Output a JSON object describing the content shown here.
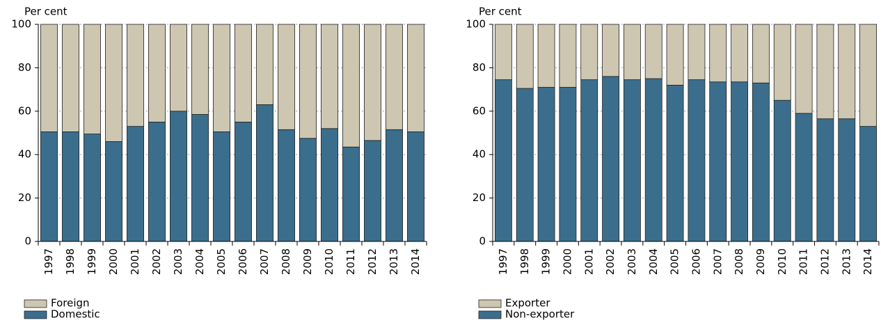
{
  "chart_data": [
    {
      "type": "bar",
      "stacked": true,
      "y_label": "Per cent",
      "categories": [
        "1997",
        "1998",
        "1999",
        "2000",
        "2001",
        "2002",
        "2003",
        "2004",
        "2005",
        "2006",
        "2007",
        "2008",
        "2009",
        "2010",
        "2011",
        "2012",
        "2013",
        "2014"
      ],
      "series": [
        {
          "name": "Domestic",
          "color": "#3b6e8c",
          "values": [
            50.5,
            50.5,
            49.5,
            46,
            53,
            55,
            60,
            58.5,
            50.5,
            55,
            63,
            51.5,
            47.5,
            52,
            43.5,
            46.5,
            51.5,
            50.5
          ]
        },
        {
          "name": "Foreign",
          "color": "#cdc6b1",
          "values": [
            49.5,
            49.5,
            50.5,
            54,
            47,
            45,
            40,
            41.5,
            49.5,
            45,
            37,
            48.5,
            52.5,
            48,
            56.5,
            53.5,
            48.5,
            49.5
          ]
        }
      ],
      "ylim": [
        0,
        100
      ],
      "yticks": [
        0,
        20,
        40,
        60,
        80,
        100
      ],
      "grid": true
    },
    {
      "type": "bar",
      "stacked": true,
      "y_label": "Per cent",
      "categories": [
        "1997",
        "1998",
        "1999",
        "2000",
        "2001",
        "2002",
        "2003",
        "2004",
        "2005",
        "2006",
        "2007",
        "2008",
        "2009",
        "2010",
        "2011",
        "2012",
        "2013",
        "2014"
      ],
      "series": [
        {
          "name": "Non-exporter",
          "color": "#3b6e8c",
          "values": [
            74.5,
            70.5,
            71,
            71,
            74.5,
            76,
            74.5,
            75,
            72,
            74.5,
            73.5,
            73.5,
            73,
            65,
            59,
            56.5,
            56.5,
            53
          ]
        },
        {
          "name": "Exporter",
          "color": "#cdc6b1",
          "values": [
            25.5,
            29.5,
            29,
            29,
            25.5,
            24,
            25.5,
            25,
            28,
            25.5,
            26.5,
            26.5,
            27,
            35,
            41,
            43.5,
            43.5,
            47
          ]
        }
      ],
      "ylim": [
        0,
        100
      ],
      "yticks": [
        0,
        20,
        40,
        60,
        80,
        100
      ],
      "grid": true
    }
  ]
}
